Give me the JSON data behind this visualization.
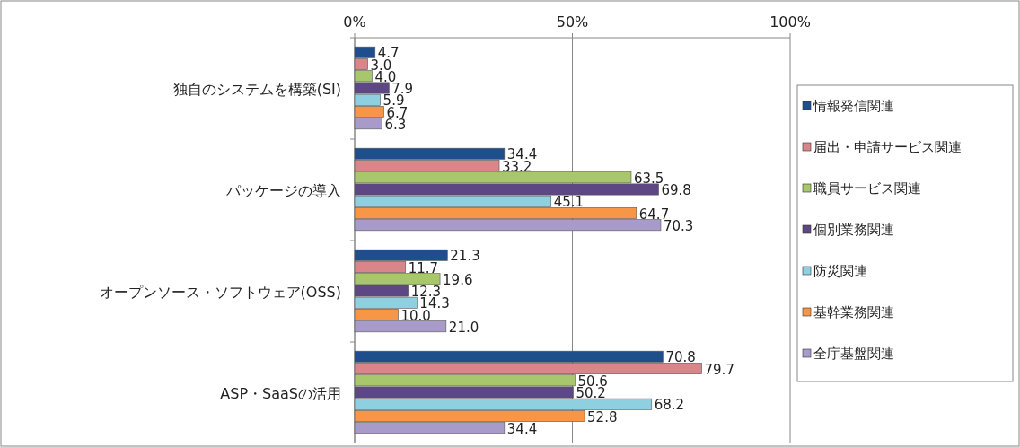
{
  "chart_data": {
    "type": "bar",
    "orientation": "horizontal",
    "categories": [
      "独自のシステムを構築(SI)",
      "パッケージの導入",
      "オープンソース・ソフトウェア(OSS)",
      "ASP・SaaSの活用"
    ],
    "series": [
      {
        "name": "情報発信関連",
        "color": "#1f4e8c",
        "values": [
          4.7,
          34.4,
          21.3,
          70.8
        ],
        "value_labels": [
          "4.7",
          "34.4",
          "21.3",
          "70.8"
        ]
      },
      {
        "name": "届出・申請サービス関連",
        "color": "#d9868a",
        "values": [
          3.0,
          33.2,
          11.7,
          79.7
        ],
        "value_labels": [
          "3.0",
          "33.2",
          "11.7",
          "79.7"
        ]
      },
      {
        "name": "職員サービス関連",
        "color": "#a8c66c",
        "values": [
          4.0,
          63.5,
          19.6,
          50.6
        ],
        "value_labels": [
          "4.0",
          "63.5",
          "19.6",
          "50.6"
        ]
      },
      {
        "name": "個別業務関連",
        "color": "#5e4785",
        "values": [
          7.9,
          69.8,
          12.3,
          50.2
        ],
        "value_labels": [
          "7.9",
          "69.8",
          "12.3",
          "50.2"
        ]
      },
      {
        "name": "防災関連",
        "color": "#8fd0e0",
        "values": [
          5.9,
          45.1,
          14.3,
          68.2
        ],
        "value_labels": [
          "5.9",
          "45.1",
          "14.3",
          "68.2"
        ]
      },
      {
        "name": "基幹業務関連",
        "color": "#f79646",
        "values": [
          6.7,
          64.7,
          10.0,
          52.8
        ],
        "value_labels": [
          "6.7",
          "64.7",
          "10.0",
          "52.8"
        ]
      },
      {
        "name": "全庁基盤関連",
        "color": "#a99bc9",
        "values": [
          6.3,
          70.3,
          21.0,
          34.4
        ],
        "value_labels": [
          "6.3",
          "70.3",
          "21.0",
          "34.4"
        ]
      }
    ],
    "xlim": [
      0,
      100
    ],
    "xticks": [
      {
        "value": 0,
        "label": "0%"
      },
      {
        "value": 50,
        "label": "50%"
      },
      {
        "value": 100,
        "label": "100%"
      }
    ],
    "grid": "x",
    "legend": "right"
  }
}
